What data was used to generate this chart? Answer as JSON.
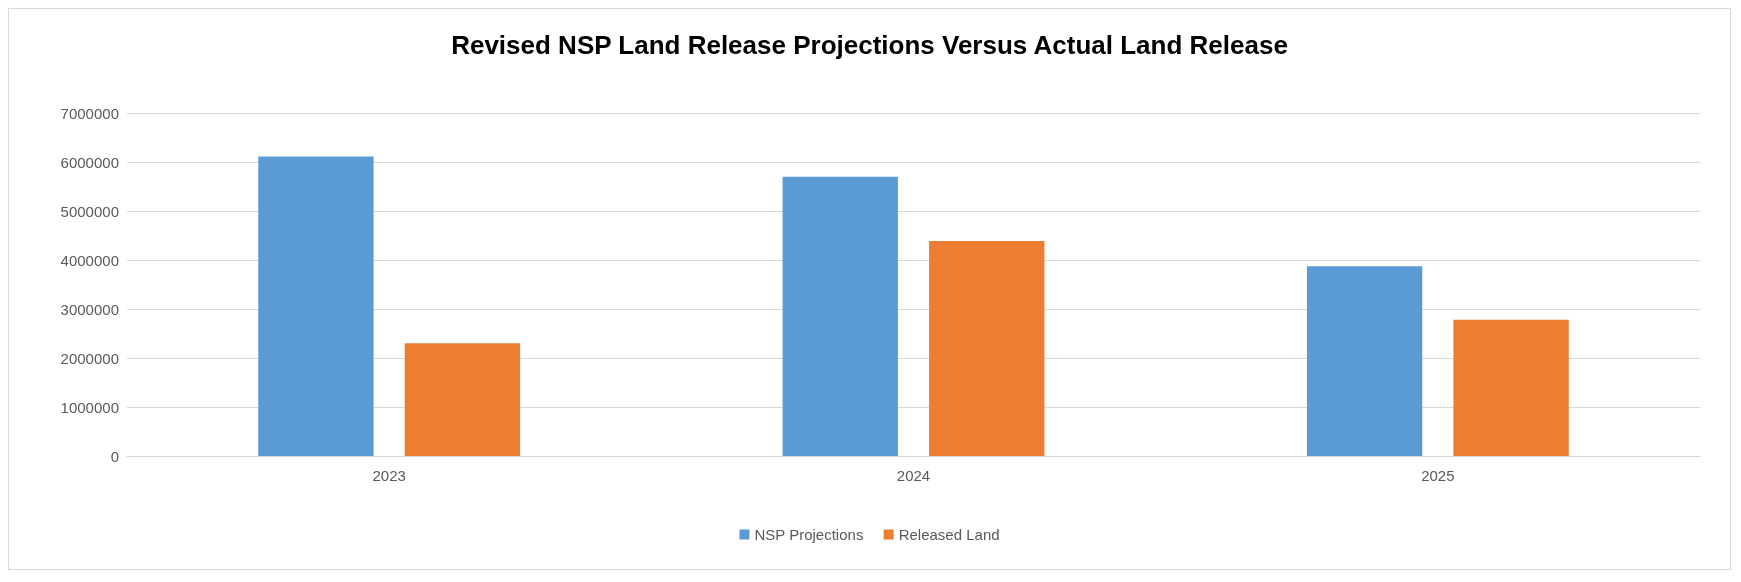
{
  "chart_data": {
    "type": "bar",
    "title": "Revised NSP Land Release Projections Versus Actual Land Release",
    "categories": [
      "2023",
      "2024",
      "2025"
    ],
    "series": [
      {
        "name": "NSP Projections",
        "color": "#5b9bd5",
        "values": [
          6110000,
          5700000,
          3870000
        ]
      },
      {
        "name": "Released Land",
        "color": "#ed7d31",
        "values": [
          2300000,
          4390000,
          2780000
        ]
      }
    ],
    "ylim": [
      0,
      7000000
    ],
    "yticks": [
      0,
      1000000,
      2000000,
      3000000,
      4000000,
      5000000,
      6000000,
      7000000
    ],
    "grid": "y",
    "legend": "bottom"
  }
}
